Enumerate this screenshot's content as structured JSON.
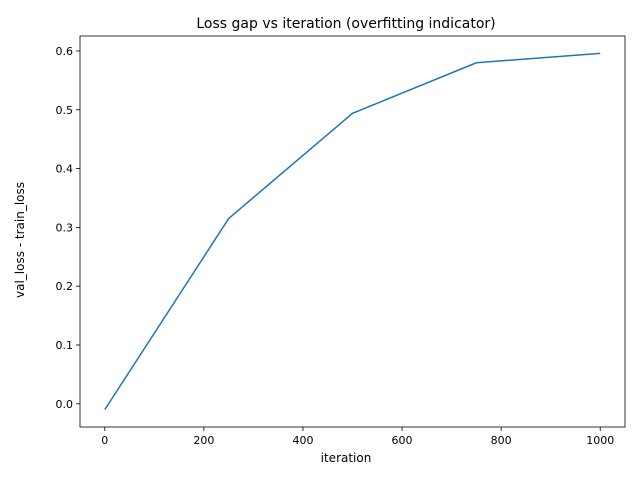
{
  "chart_data": {
    "type": "line",
    "title": "Loss gap vs iteration (overfitting indicator)",
    "xlabel": "iteration",
    "ylabel": "val_loss - train_loss",
    "xlim": [
      -50,
      1050
    ],
    "ylim": [
      -0.0395,
      0.6255
    ],
    "xticks": [
      0,
      200,
      400,
      600,
      800,
      1000
    ],
    "xtick_labels": [
      "0",
      "200",
      "400",
      "600",
      "800",
      "1000"
    ],
    "yticks": [
      0.0,
      0.1,
      0.2,
      0.3,
      0.4,
      0.5,
      0.6
    ],
    "ytick_labels": [
      "0.0",
      "0.1",
      "0.2",
      "0.3",
      "0.4",
      "0.5",
      "0.6"
    ],
    "grid": false,
    "series": [
      {
        "color": "#1f77b4",
        "x": [
          0,
          250,
          500,
          750,
          1000
        ],
        "y": [
          -0.01,
          0.315,
          0.494,
          0.58,
          0.596
        ]
      }
    ]
  }
}
